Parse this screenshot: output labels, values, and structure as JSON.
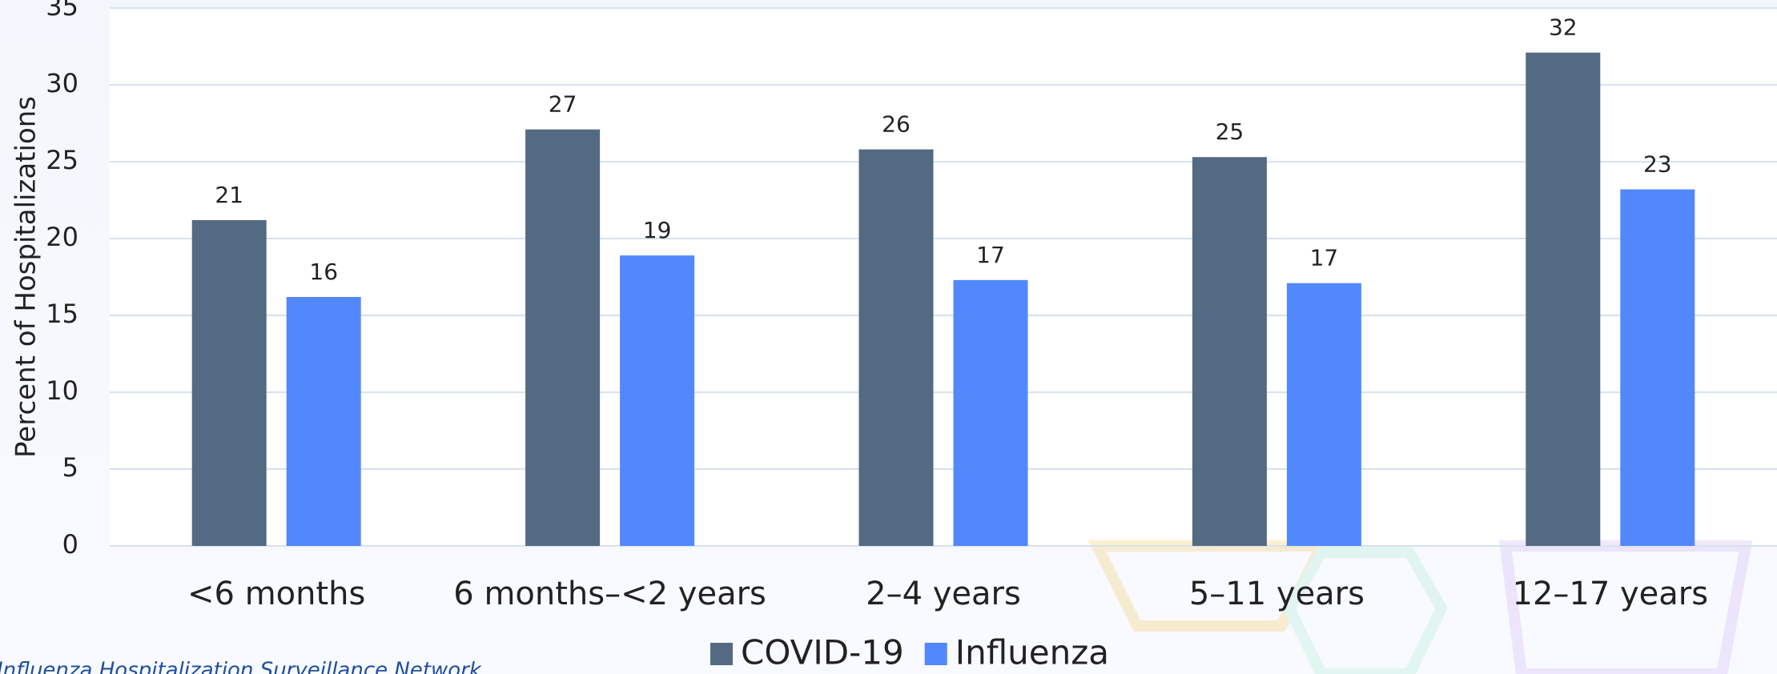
{
  "chart_data": {
    "type": "bar",
    "y_label": "Percent of Hospitalizations",
    "categories": [
      "<6 months",
      "6 months–<2 years",
      "2–4 years",
      "5–11 years",
      "12–17 years"
    ],
    "series": [
      {
        "name": "COVID-19",
        "color": "#546a82",
        "values": [
          21.2,
          27.1,
          25.8,
          25.3,
          32.1
        ],
        "value_labels": [
          "21",
          "27",
          "26",
          "25",
          "32"
        ]
      },
      {
        "name": "Influenza",
        "color": "#5288fc",
        "values": [
          16.2,
          18.9,
          17.3,
          17.1,
          23.2
        ],
        "value_labels": [
          "16",
          "19",
          "17",
          "17",
          "23"
        ]
      }
    ],
    "ylim": [
      0,
      35
    ],
    "yticks": [
      0,
      5,
      10,
      15,
      20,
      25,
      30,
      35
    ],
    "grid": true,
    "legend": "bottom",
    "source": "Influenza Hospitalization Surveillance Network"
  }
}
